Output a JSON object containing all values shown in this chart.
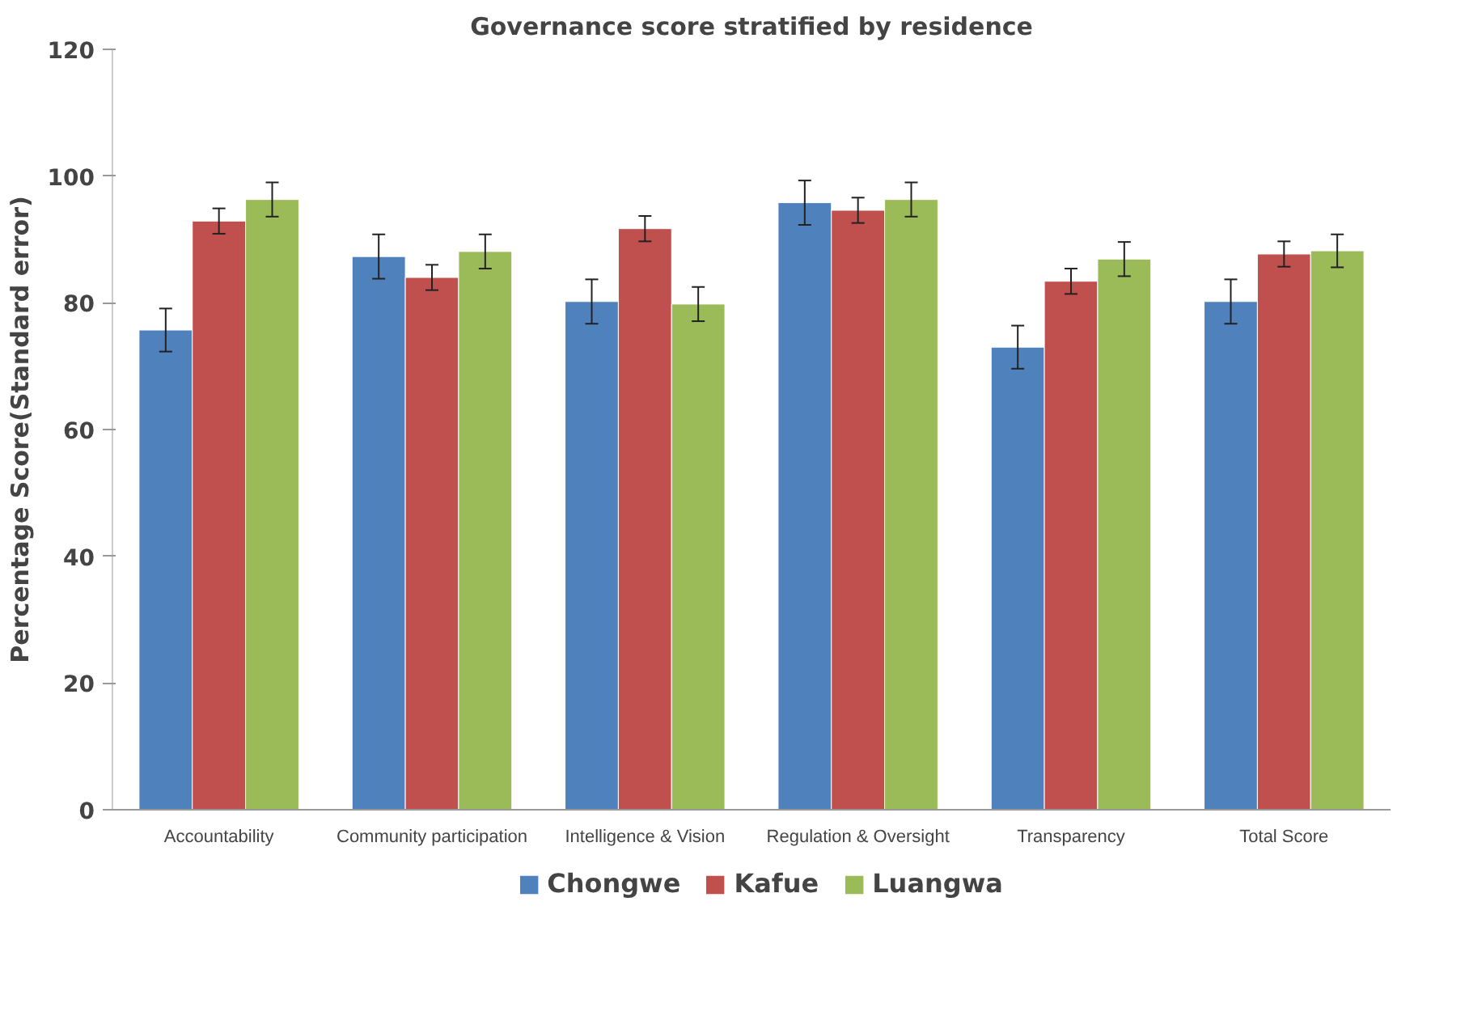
{
  "chart_data": {
    "type": "bar",
    "title": "Governance score stratified by residence",
    "ylabel": "Percentage Score(Standard error)",
    "categories": [
      "Accountability",
      "Community participation",
      "Intelligence & Vision",
      "Regulation & Oversight",
      "Transparency",
      "Total Score"
    ],
    "series": [
      {
        "name": "Chongwe",
        "color": "#4f81bd",
        "values": [
          75.7,
          87.3,
          80.2,
          95.8,
          73.0,
          80.2
        ],
        "errors": [
          3.4,
          3.5,
          3.5,
          3.5,
          3.4,
          3.5
        ]
      },
      {
        "name": "Kafue",
        "color": "#c0504d",
        "values": [
          92.9,
          84.0,
          91.7,
          94.6,
          83.4,
          87.7
        ],
        "errors": [
          2,
          2,
          2,
          2,
          2,
          2
        ]
      },
      {
        "name": "Luangwa",
        "color": "#9bbb59",
        "values": [
          96.3,
          88.1,
          79.8,
          96.3,
          86.9,
          88.2
        ],
        "errors": [
          2.7,
          2.7,
          2.7,
          2.7,
          2.7,
          2.6
        ]
      }
    ],
    "ylim": [
      0,
      120
    ],
    "yticks": [
      0,
      20,
      40,
      60,
      80,
      100,
      120
    ],
    "grid": false,
    "legend": "bottom"
  }
}
